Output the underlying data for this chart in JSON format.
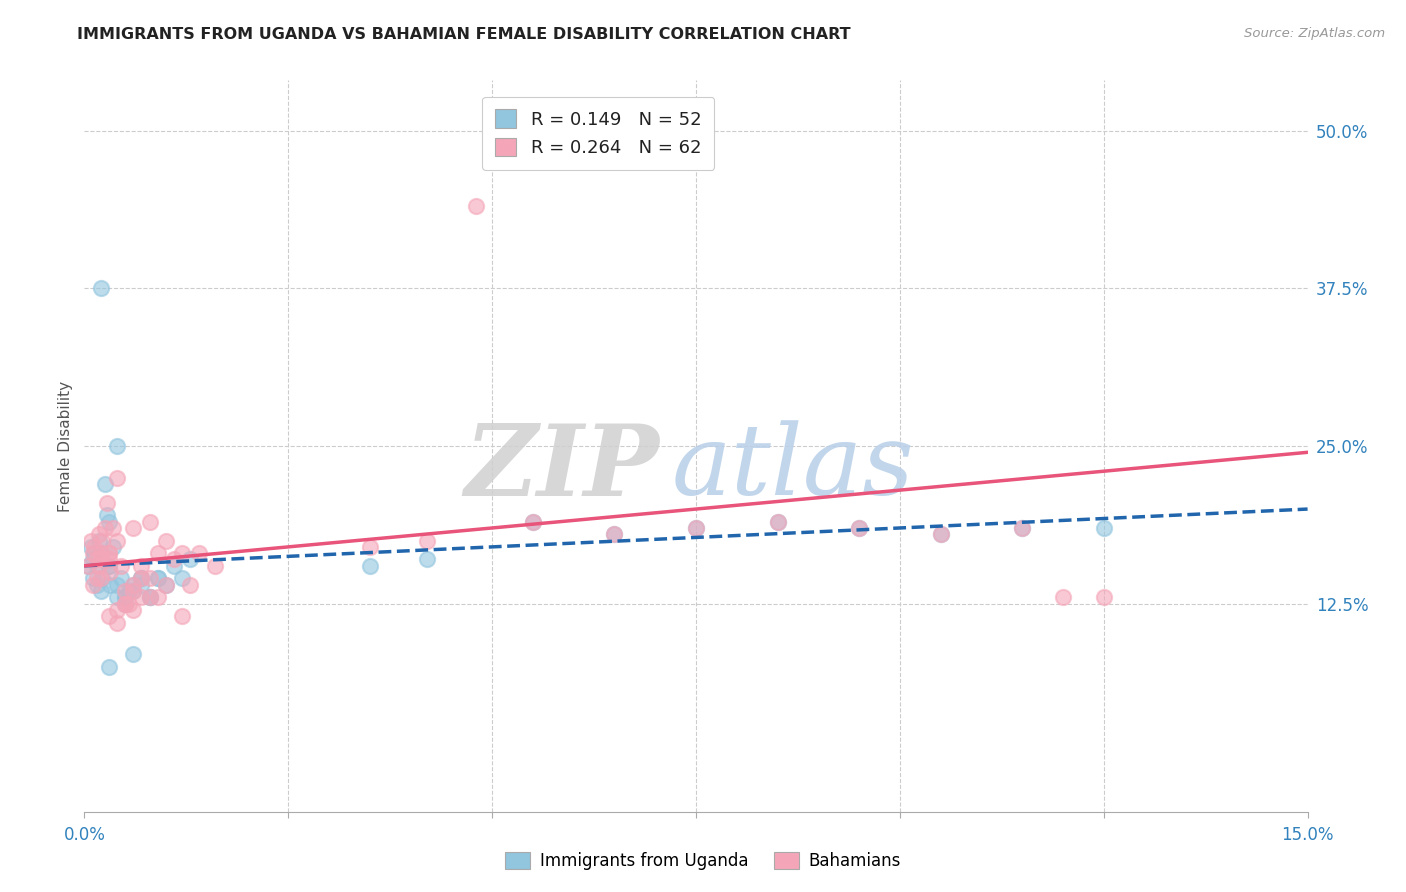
{
  "title": "IMMIGRANTS FROM UGANDA VS BAHAMIAN FEMALE DISABILITY CORRELATION CHART",
  "source": "Source: ZipAtlas.com",
  "ylabel": "Female Disability",
  "yticks": [
    "12.5%",
    "25.0%",
    "37.5%",
    "50.0%"
  ],
  "ytick_vals": [
    0.125,
    0.25,
    0.375,
    0.5
  ],
  "xrange": [
    0.0,
    0.15
  ],
  "yrange": [
    -0.04,
    0.54
  ],
  "legend_line1": "R = 0.149   N = 52",
  "legend_line2": "R = 0.264   N = 62",
  "color_blue": "#92c5de",
  "color_pink": "#f4a6b8",
  "color_blue_line": "#2166ac",
  "color_pink_line": "#e8547a",
  "watermark_zip": "ZIP",
  "watermark_atlas": "atlas",
  "R_uganda": 0.149,
  "N_uganda": 52,
  "R_bahamian": 0.264,
  "N_bahamian": 62,
  "uganda_x": [
    0.0005,
    0.001,
    0.0015,
    0.0008,
    0.001,
    0.002,
    0.0025,
    0.0018,
    0.003,
    0.0012,
    0.0022,
    0.0035,
    0.0028,
    0.004,
    0.0015,
    0.003,
    0.0045,
    0.002,
    0.005,
    0.0032,
    0.006,
    0.004,
    0.0055,
    0.007,
    0.003,
    0.008,
    0.005,
    0.009,
    0.006,
    0.01,
    0.004,
    0.007,
    0.011,
    0.005,
    0.008,
    0.012,
    0.006,
    0.009,
    0.013,
    0.007,
    0.035,
    0.042,
    0.055,
    0.065,
    0.075,
    0.085,
    0.095,
    0.105,
    0.115,
    0.125,
    0.002,
    0.003
  ],
  "uganda_y": [
    0.155,
    0.16,
    0.14,
    0.17,
    0.145,
    0.165,
    0.22,
    0.175,
    0.19,
    0.165,
    0.145,
    0.17,
    0.195,
    0.25,
    0.155,
    0.155,
    0.145,
    0.135,
    0.125,
    0.14,
    0.135,
    0.13,
    0.135,
    0.14,
    0.075,
    0.13,
    0.13,
    0.145,
    0.085,
    0.14,
    0.14,
    0.145,
    0.155,
    0.13,
    0.13,
    0.145,
    0.14,
    0.145,
    0.16,
    0.145,
    0.155,
    0.16,
    0.19,
    0.18,
    0.185,
    0.19,
    0.185,
    0.18,
    0.185,
    0.185,
    0.375,
    0.155
  ],
  "bahamian_x": [
    0.0005,
    0.001,
    0.0015,
    0.0008,
    0.001,
    0.002,
    0.0025,
    0.0018,
    0.003,
    0.0012,
    0.0022,
    0.0035,
    0.0028,
    0.004,
    0.0015,
    0.003,
    0.0045,
    0.002,
    0.005,
    0.0032,
    0.006,
    0.004,
    0.0055,
    0.007,
    0.003,
    0.008,
    0.005,
    0.009,
    0.006,
    0.01,
    0.004,
    0.007,
    0.011,
    0.005,
    0.008,
    0.012,
    0.006,
    0.009,
    0.013,
    0.007,
    0.035,
    0.042,
    0.055,
    0.065,
    0.075,
    0.085,
    0.095,
    0.105,
    0.115,
    0.125,
    0.002,
    0.003,
    0.0018,
    0.004,
    0.006,
    0.008,
    0.01,
    0.012,
    0.014,
    0.016,
    0.048,
    0.12
  ],
  "bahamian_y": [
    0.155,
    0.165,
    0.145,
    0.175,
    0.14,
    0.165,
    0.185,
    0.18,
    0.165,
    0.17,
    0.175,
    0.185,
    0.205,
    0.225,
    0.16,
    0.165,
    0.155,
    0.145,
    0.135,
    0.15,
    0.14,
    0.12,
    0.125,
    0.13,
    0.115,
    0.145,
    0.125,
    0.13,
    0.12,
    0.14,
    0.11,
    0.145,
    0.16,
    0.125,
    0.13,
    0.115,
    0.135,
    0.165,
    0.14,
    0.155,
    0.17,
    0.175,
    0.19,
    0.18,
    0.185,
    0.19,
    0.185,
    0.18,
    0.185,
    0.13,
    0.16,
    0.16,
    0.155,
    0.175,
    0.185,
    0.19,
    0.175,
    0.165,
    0.165,
    0.155,
    0.44,
    0.13
  ]
}
